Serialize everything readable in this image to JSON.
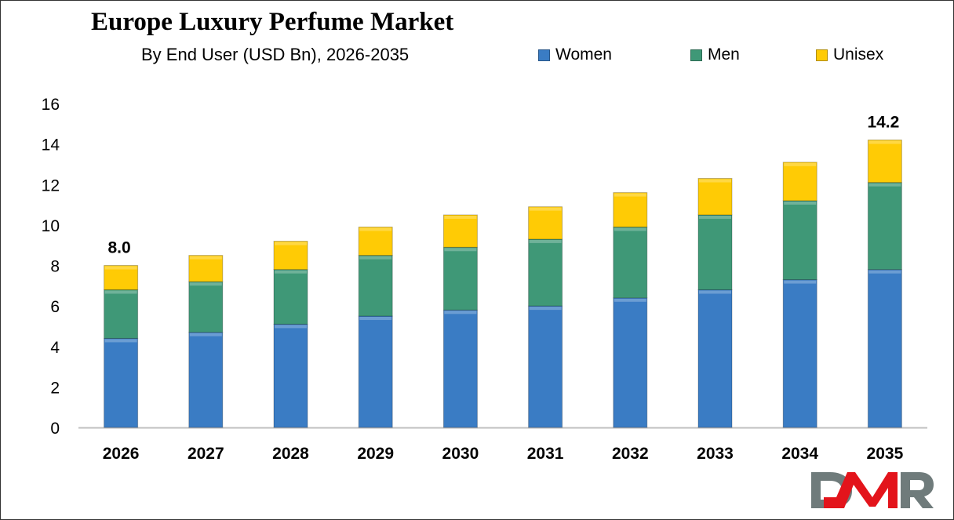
{
  "chart_data": {
    "type": "bar",
    "stacked": true,
    "title": "Europe Luxury Perfume Market",
    "subtitle": "By End User (USD Bn), 2026-2035",
    "xlabel": "",
    "ylabel": "",
    "categories": [
      "2026",
      "2027",
      "2028",
      "2029",
      "2030",
      "2031",
      "2032",
      "2033",
      "2034",
      "2035"
    ],
    "series": [
      {
        "name": "Women",
        "color": "#3a7cc4",
        "values": [
          4.4,
          4.7,
          5.1,
          5.5,
          5.8,
          6.0,
          6.4,
          6.8,
          7.3,
          7.8
        ]
      },
      {
        "name": "Men",
        "color": "#3f9877",
        "values": [
          2.4,
          2.5,
          2.7,
          3.0,
          3.1,
          3.3,
          3.5,
          3.7,
          3.9,
          4.3
        ]
      },
      {
        "name": "Unisex",
        "color": "#ffcb05",
        "values": [
          1.2,
          1.3,
          1.4,
          1.4,
          1.6,
          1.6,
          1.7,
          1.8,
          1.9,
          2.1
        ]
      }
    ],
    "data_labels": [
      {
        "category": "2026",
        "text": "8.0"
      },
      {
        "category": "2035",
        "text": "14.2"
      }
    ],
    "ylim": [
      0,
      16
    ],
    "yticks": [
      "0",
      "2",
      "4",
      "6",
      "8",
      "10",
      "12",
      "14",
      "16"
    ],
    "grid": false,
    "legend_position": "top-right"
  },
  "logo": {
    "text": "DMR",
    "colors": [
      "#6f7b7b",
      "#e3141b"
    ]
  }
}
